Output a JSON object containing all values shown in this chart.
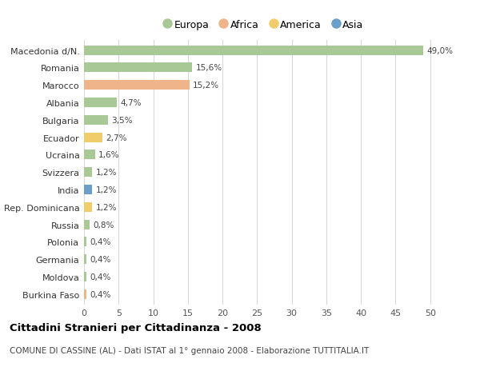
{
  "title": "Cittadini Stranieri per Cittadinanza - 2008",
  "subtitle": "COMUNE DI CASSINE (AL) - Dati ISTAT al 1° gennaio 2008 - Elaborazione TUTTITALIA.IT",
  "categories": [
    "Macedonia d/N.",
    "Romania",
    "Marocco",
    "Albania",
    "Bulgaria",
    "Ecuador",
    "Ucraina",
    "Svizzera",
    "India",
    "Rep. Dominicana",
    "Russia",
    "Polonia",
    "Germania",
    "Moldova",
    "Burkina Faso"
  ],
  "values": [
    49.0,
    15.6,
    15.2,
    4.7,
    3.5,
    2.7,
    1.6,
    1.2,
    1.2,
    1.2,
    0.8,
    0.4,
    0.4,
    0.4,
    0.4
  ],
  "labels": [
    "49,0%",
    "15,6%",
    "15,2%",
    "4,7%",
    "3,5%",
    "2,7%",
    "1,6%",
    "1,2%",
    "1,2%",
    "1,2%",
    "0,8%",
    "0,4%",
    "0,4%",
    "0,4%",
    "0,4%"
  ],
  "continents": [
    "Europa",
    "Europa",
    "Africa",
    "Europa",
    "Europa",
    "America",
    "Europa",
    "Europa",
    "Asia",
    "America",
    "Europa",
    "Europa",
    "Europa",
    "Europa",
    "Africa"
  ],
  "colors": {
    "Europa": "#a8c895",
    "Africa": "#f0b48a",
    "America": "#f0cc6a",
    "Asia": "#6b9ec8"
  },
  "legend_items": [
    "Europa",
    "Africa",
    "America",
    "Asia"
  ],
  "xlim": [
    0,
    52
  ],
  "xticks": [
    0,
    5,
    10,
    15,
    20,
    25,
    30,
    35,
    40,
    45,
    50
  ],
  "background_color": "#ffffff",
  "grid_color": "#d8d8d8",
  "bar_height": 0.55,
  "figsize": [
    6.0,
    4.6
  ],
  "dpi": 100
}
